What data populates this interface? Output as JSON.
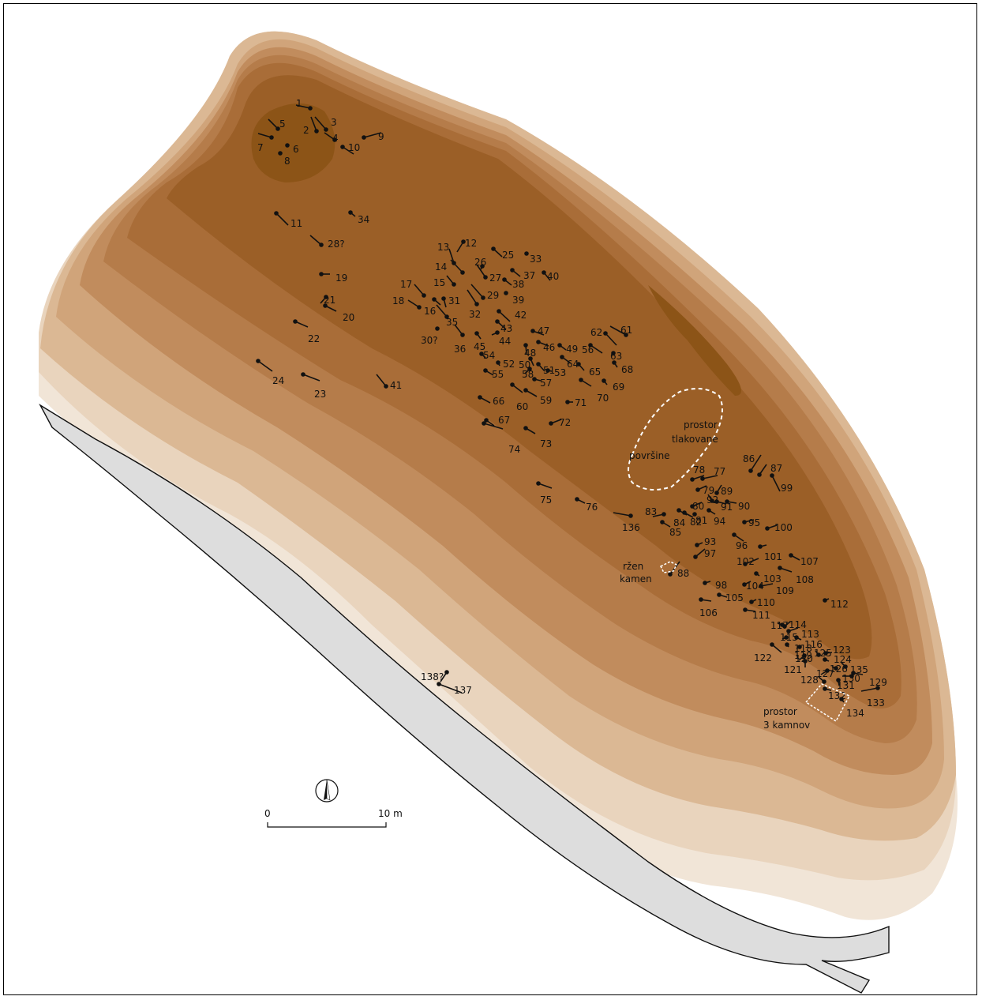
{
  "map": {
    "colors": {
      "contour_1": "#f1e5d7",
      "contour_2": "#e9d4bd",
      "contour_3": "#dbb894",
      "contour_4": "#d0a47a",
      "contour_5": "#c18c5d",
      "contour_6": "#b57c4a",
      "contour_7": "#a96d38",
      "contour_8": "#9b5f27",
      "contour_9": "#8c5417",
      "road": "#dddddd",
      "marker": "#111111"
    },
    "features": [
      {
        "id": "1",
        "label": "1"
      },
      {
        "id": "2",
        "label": "2"
      },
      {
        "id": "3",
        "label": "3"
      },
      {
        "id": "4",
        "label": "4"
      },
      {
        "id": "5",
        "label": "5"
      },
      {
        "id": "6",
        "label": "6"
      },
      {
        "id": "7",
        "label": "7"
      },
      {
        "id": "8",
        "label": "8"
      },
      {
        "id": "9",
        "label": "9"
      },
      {
        "id": "10",
        "label": "10"
      },
      {
        "id": "11",
        "label": "11"
      },
      {
        "id": "12",
        "label": "12"
      },
      {
        "id": "13",
        "label": "13"
      },
      {
        "id": "14",
        "label": "14"
      },
      {
        "id": "15",
        "label": "15"
      },
      {
        "id": "16",
        "label": "16"
      },
      {
        "id": "17",
        "label": "17"
      },
      {
        "id": "18",
        "label": "18"
      },
      {
        "id": "19",
        "label": "19"
      },
      {
        "id": "20",
        "label": "20"
      },
      {
        "id": "21",
        "label": "21"
      },
      {
        "id": "22",
        "label": "22"
      },
      {
        "id": "23",
        "label": "23"
      },
      {
        "id": "24",
        "label": "24"
      },
      {
        "id": "25",
        "label": "25"
      },
      {
        "id": "26",
        "label": "26"
      },
      {
        "id": "27",
        "label": "27"
      },
      {
        "id": "28",
        "label": "28?"
      },
      {
        "id": "29",
        "label": "29"
      },
      {
        "id": "30",
        "label": "30?"
      },
      {
        "id": "31",
        "label": "31"
      },
      {
        "id": "32",
        "label": "32"
      },
      {
        "id": "33",
        "label": "33"
      },
      {
        "id": "34",
        "label": "34"
      },
      {
        "id": "35",
        "label": "35"
      },
      {
        "id": "36",
        "label": "36"
      },
      {
        "id": "37",
        "label": "37"
      },
      {
        "id": "38",
        "label": "38"
      },
      {
        "id": "39",
        "label": "39"
      },
      {
        "id": "40",
        "label": "40"
      },
      {
        "id": "41",
        "label": "41"
      },
      {
        "id": "42",
        "label": "42"
      },
      {
        "id": "43",
        "label": "43"
      },
      {
        "id": "44",
        "label": "44"
      },
      {
        "id": "45",
        "label": "45"
      },
      {
        "id": "46",
        "label": "46"
      },
      {
        "id": "47",
        "label": "47"
      },
      {
        "id": "48",
        "label": "48"
      },
      {
        "id": "49",
        "label": "49"
      },
      {
        "id": "50",
        "label": "50"
      },
      {
        "id": "51",
        "label": "51"
      },
      {
        "id": "52",
        "label": "52"
      },
      {
        "id": "53",
        "label": "53"
      },
      {
        "id": "54",
        "label": "54"
      },
      {
        "id": "55",
        "label": "55"
      },
      {
        "id": "56",
        "label": "56"
      },
      {
        "id": "57",
        "label": "57"
      },
      {
        "id": "58",
        "label": "58"
      },
      {
        "id": "59",
        "label": "59"
      },
      {
        "id": "60",
        "label": "60"
      },
      {
        "id": "61",
        "label": "61"
      },
      {
        "id": "62",
        "label": "62"
      },
      {
        "id": "63",
        "label": "63"
      },
      {
        "id": "64",
        "label": "64"
      },
      {
        "id": "65",
        "label": "65"
      },
      {
        "id": "66",
        "label": "66"
      },
      {
        "id": "67",
        "label": "67"
      },
      {
        "id": "68",
        "label": "68"
      },
      {
        "id": "69",
        "label": "69"
      },
      {
        "id": "70",
        "label": "70"
      },
      {
        "id": "71",
        "label": "71"
      },
      {
        "id": "72",
        "label": "72"
      },
      {
        "id": "73",
        "label": "73"
      },
      {
        "id": "74",
        "label": "74"
      },
      {
        "id": "75",
        "label": "75"
      },
      {
        "id": "76",
        "label": "76"
      },
      {
        "id": "77",
        "label": "77"
      },
      {
        "id": "78",
        "label": "78"
      },
      {
        "id": "79",
        "label": "79"
      },
      {
        "id": "80",
        "label": "80"
      },
      {
        "id": "81",
        "label": "81"
      },
      {
        "id": "82",
        "label": "82"
      },
      {
        "id": "83",
        "label": "83"
      },
      {
        "id": "84",
        "label": "84"
      },
      {
        "id": "85",
        "label": "85"
      },
      {
        "id": "86",
        "label": "86"
      },
      {
        "id": "87",
        "label": "87"
      },
      {
        "id": "88",
        "label": "88"
      },
      {
        "id": "89",
        "label": "89"
      },
      {
        "id": "90",
        "label": "90"
      },
      {
        "id": "91",
        "label": "91"
      },
      {
        "id": "92",
        "label": "92"
      },
      {
        "id": "93",
        "label": "93"
      },
      {
        "id": "94",
        "label": "94"
      },
      {
        "id": "95",
        "label": "95"
      },
      {
        "id": "96",
        "label": "96"
      },
      {
        "id": "97",
        "label": "97"
      },
      {
        "id": "98",
        "label": "98"
      },
      {
        "id": "99",
        "label": "99"
      },
      {
        "id": "100",
        "label": "100"
      },
      {
        "id": "101",
        "label": "101"
      },
      {
        "id": "102",
        "label": "102"
      },
      {
        "id": "103",
        "label": "103"
      },
      {
        "id": "104",
        "label": "104"
      },
      {
        "id": "105",
        "label": "105"
      },
      {
        "id": "106",
        "label": "106"
      },
      {
        "id": "107",
        "label": "107"
      },
      {
        "id": "108",
        "label": "108"
      },
      {
        "id": "109",
        "label": "109"
      },
      {
        "id": "110",
        "label": "110"
      },
      {
        "id": "111",
        "label": "111"
      },
      {
        "id": "112",
        "label": "112"
      },
      {
        "id": "113",
        "label": "113"
      },
      {
        "id": "114",
        "label": "114"
      },
      {
        "id": "115",
        "label": "115"
      },
      {
        "id": "116",
        "label": "116"
      },
      {
        "id": "117",
        "label": "117"
      },
      {
        "id": "118",
        "label": "118"
      },
      {
        "id": "119",
        "label": "119"
      },
      {
        "id": "120",
        "label": "120"
      },
      {
        "id": "121",
        "label": "121"
      },
      {
        "id": "122",
        "label": "122"
      },
      {
        "id": "123",
        "label": "123"
      },
      {
        "id": "124",
        "label": "124"
      },
      {
        "id": "125",
        "label": "125"
      },
      {
        "id": "126",
        "label": "126"
      },
      {
        "id": "127",
        "label": "127"
      },
      {
        "id": "128",
        "label": "128"
      },
      {
        "id": "129",
        "label": "129"
      },
      {
        "id": "130",
        "label": "130"
      },
      {
        "id": "131",
        "label": "131"
      },
      {
        "id": "132",
        "label": "132"
      },
      {
        "id": "133",
        "label": "133"
      },
      {
        "id": "134",
        "label": "134"
      },
      {
        "id": "135",
        "label": "135"
      },
      {
        "id": "136",
        "label": "136"
      },
      {
        "id": "137",
        "label": "137"
      },
      {
        "id": "138",
        "label": "138?"
      }
    ],
    "areas": {
      "paved": {
        "line1": "prostor",
        "line2": "tlakovane",
        "line3": "površine"
      },
      "burnt_stone": {
        "line1": "ržen",
        "line2": "kamen"
      },
      "three_stones": {
        "line1": "prostor",
        "line2": "3 kamnov"
      }
    },
    "scale": {
      "start": "0",
      "end": "10 m"
    },
    "north_arrow": {
      "icon": "north-arrow-icon"
    }
  }
}
